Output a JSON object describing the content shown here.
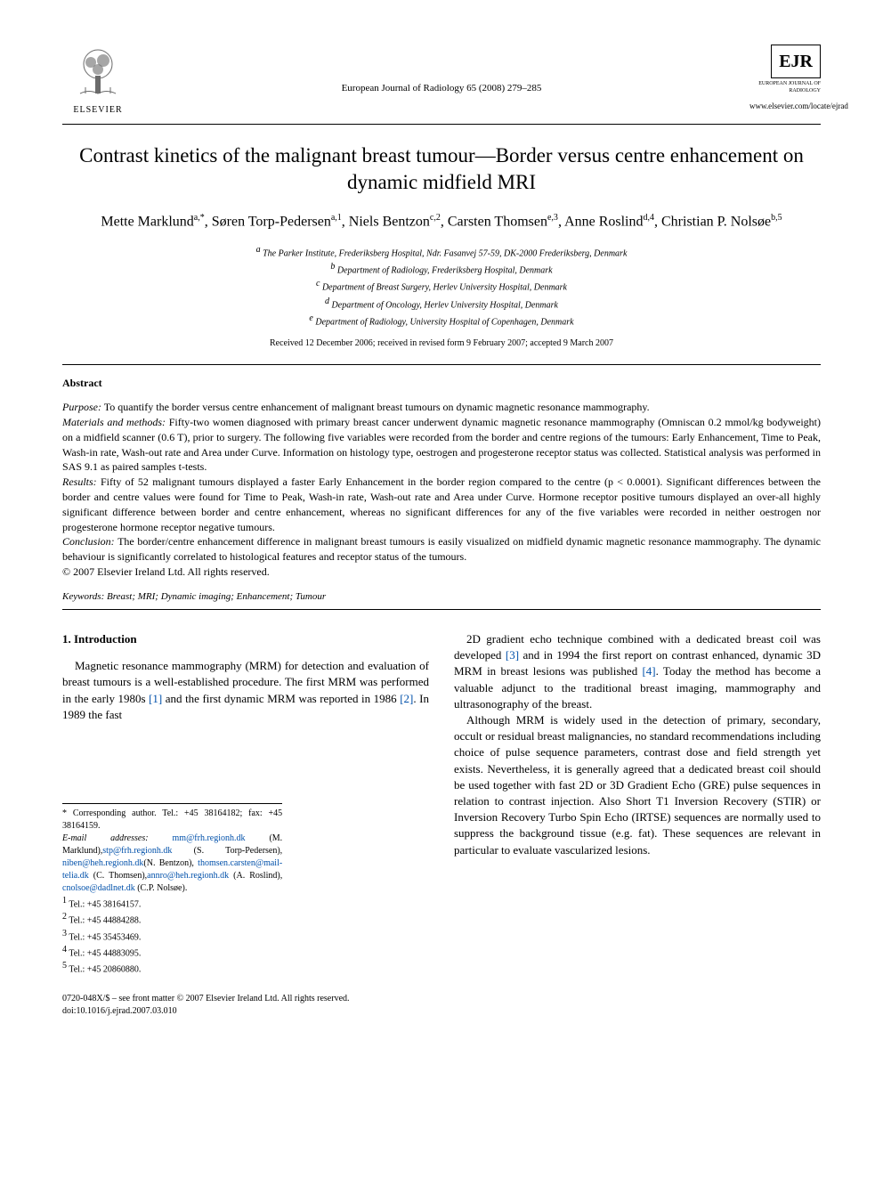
{
  "header": {
    "publisher": "ELSEVIER",
    "journal_ref": "European Journal of Radiology 65 (2008) 279–285",
    "ejr_abbrev": "EJR",
    "ejr_full": "EUROPEAN JOURNAL OF RADIOLOGY",
    "site_url": "www.elsevier.com/locate/ejrad"
  },
  "title": "Contrast kinetics of the malignant breast tumour—Border versus centre enhancement on dynamic midfield MRI",
  "authors_html": "Mette Marklund<span class='sup'>a,*</span>, Søren Torp-Pedersen<span class='sup'>a,1</span>, Niels Bentzon<span class='sup'>c,2</span>, Carsten Thomsen<span class='sup'>e,3</span>, Anne Roslind<span class='sup'>d,4</span>, Christian P. Nolsøe<span class='sup'>b,5</span>",
  "affiliations": [
    "a The Parker Institute, Frederiksberg Hospital, Ndr. Fasanvej 57-59, DK-2000 Frederiksberg, Denmark",
    "b Department of Radiology, Frederiksberg Hospital, Denmark",
    "c Department of Breast Surgery, Herlev University Hospital, Denmark",
    "d Department of Oncology, Herlev University Hospital, Denmark",
    "e Department of Radiology, University Hospital of Copenhagen, Denmark"
  ],
  "dates": "Received 12 December 2006; received in revised form 9 February 2007; accepted 9 March 2007",
  "abstract": {
    "heading": "Abstract",
    "purpose_label": "Purpose:",
    "purpose": " To quantify the border versus centre enhancement of malignant breast tumours on dynamic magnetic resonance mammography.",
    "materials_label": "Materials and methods:",
    "materials": " Fifty-two women diagnosed with primary breast cancer underwent dynamic magnetic resonance mammography (Omniscan 0.2 mmol/kg bodyweight) on a midfield scanner (0.6 T), prior to surgery. The following five variables were recorded from the border and centre regions of the tumours: Early Enhancement, Time to Peak, Wash-in rate, Wash-out rate and Area under Curve. Information on histology type, oestrogen and progesterone receptor status was collected. Statistical analysis was performed in SAS 9.1 as paired samples t-tests.",
    "results_label": "Results:",
    "results": " Fifty of 52 malignant tumours displayed a faster Early Enhancement in the border region compared to the centre (p < 0.0001). Significant differences between the border and centre values were found for Time to Peak, Wash-in rate, Wash-out rate and Area under Curve. Hormone receptor positive tumours displayed an over-all highly significant difference between border and centre enhancement, whereas no significant differences for any of the five variables were recorded in neither oestrogen nor progesterone hormone receptor negative tumours.",
    "conclusion_label": "Conclusion:",
    "conclusion": " The border/centre enhancement difference in malignant breast tumours is easily visualized on midfield dynamic magnetic resonance mammography. The dynamic behaviour is significantly correlated to histological features and receptor status of the tumours.",
    "copyright": "© 2007 Elsevier Ireland Ltd. All rights reserved."
  },
  "keywords_label": "Keywords:",
  "keywords": " Breast; MRI; Dynamic imaging; Enhancement; Tumour",
  "intro": {
    "heading": "1. Introduction",
    "p1a": "Magnetic resonance mammography (MRM) for detection and evaluation of breast tumours is a well-established procedure. The first MRM was performed in the early 1980s ",
    "ref1": "[1]",
    "p1b": " and the first dynamic MRM was reported in 1986 ",
    "ref2": "[2]",
    "p1c": ". In 1989 the fast",
    "p2a": "2D gradient echo technique combined with a dedicated breast coil was developed ",
    "ref3": "[3]",
    "p2b": " and in 1994 the first report on contrast enhanced, dynamic 3D MRM in breast lesions was published ",
    "ref4": "[4]",
    "p2c": ". Today the method has become a valuable adjunct to the traditional breast imaging, mammography and ultrasonography of the breast.",
    "p3": "Although MRM is widely used in the detection of primary, secondary, occult or residual breast malignancies, no standard recommendations including choice of pulse sequence parameters, contrast dose and field strength yet exists. Nevertheless, it is generally agreed that a dedicated breast coil should be used together with fast 2D or 3D Gradient Echo (GRE) pulse sequences in relation to contrast injection. Also Short T1 Inversion Recovery (STIR) or Inversion Recovery Turbo Spin Echo (IRTSE) sequences are normally used to suppress the background tissue (e.g. fat). These sequences are relevant in particular to evaluate vascularized lesions."
  },
  "footnotes": {
    "corr": "* Corresponding author. Tel.: +45 38164182; fax: +45 38164159.",
    "email_label": "E-mail addresses:",
    "emails": [
      {
        "addr": "mm@frh.regionh.dk",
        "who": " (M. Marklund),"
      },
      {
        "addr": "stp@frh.regionh.dk",
        "who": " (S. Torp-Pedersen), "
      },
      {
        "addr": "niben@heh.regionh.dk",
        "who": ""
      },
      {
        "addr": "",
        "who": "(N. Bentzon), "
      },
      {
        "addr": "thomsen.carsten@mail-telia.dk",
        "who": " (C. Thomsen),"
      },
      {
        "addr": "annro@heh.regionh.dk",
        "who": " (A. Roslind), "
      },
      {
        "addr": "cnolsoe@dadlnet.dk",
        "who": " (C.P. Nolsøe)."
      }
    ],
    "tels": [
      "1 Tel.: +45 38164157.",
      "2 Tel.: +45 44884288.",
      "3 Tel.: +45 35453469.",
      "4 Tel.: +45 44883095.",
      "5 Tel.: +45 20860880."
    ]
  },
  "footer": {
    "line1": "0720-048X/$ – see front matter © 2007 Elsevier Ireland Ltd. All rights reserved.",
    "line2": "doi:10.1016/j.ejrad.2007.03.010"
  },
  "colors": {
    "link": "#0050aa",
    "text": "#000000",
    "bg": "#ffffff"
  }
}
